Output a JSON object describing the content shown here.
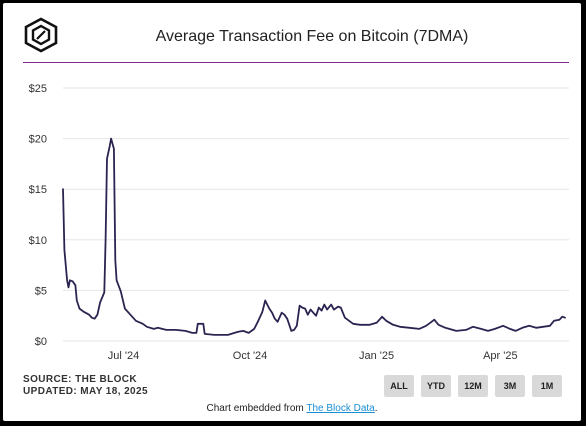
{
  "header": {
    "title": "Average Transaction Fee on Bitcoin (7DMA)"
  },
  "footer": {
    "source_line": "SOURCE: THE BLOCK",
    "updated_line": "UPDATED: MAY 18, 2025",
    "embed_prefix": "Chart embedded from ",
    "embed_link": "The Block Data",
    "embed_suffix": "."
  },
  "range_buttons": [
    "ALL",
    "YTD",
    "12M",
    "3M",
    "1M"
  ],
  "colors": {
    "line": "#2a2550",
    "accent_rule": "#7b2a8a",
    "grid": "#e6e6e6",
    "button_bg": "#d9d9d9",
    "link": "#1a8fd6"
  },
  "chart_data": {
    "type": "line",
    "title": "Average Transaction Fee on Bitcoin (7DMA)",
    "xlabel": "",
    "ylabel": "",
    "grid": true,
    "ylim": [
      0,
      25
    ],
    "xlim": [
      "2024-05-18",
      "2025-05-18"
    ],
    "y_ticks": [
      "$0",
      "$5",
      "$10",
      "$15",
      "$20",
      "$25"
    ],
    "x_ticks": [
      {
        "label": "Jul '24",
        "date": "2024-07-01"
      },
      {
        "label": "Oct '24",
        "date": "2024-10-01"
      },
      {
        "label": "Jan '25",
        "date": "2025-01-01"
      },
      {
        "label": "Apr '25",
        "date": "2025-04-01"
      }
    ],
    "series": [
      {
        "points": [
          [
            "2024-05-18",
            15.0
          ],
          [
            "2024-05-19",
            9.0
          ],
          [
            "2024-05-21",
            6.0
          ],
          [
            "2024-05-22",
            5.3
          ],
          [
            "2024-05-23",
            6.0
          ],
          [
            "2024-05-25",
            5.9
          ],
          [
            "2024-05-27",
            5.5
          ],
          [
            "2024-05-28",
            4.0
          ],
          [
            "2024-05-30",
            3.2
          ],
          [
            "2024-06-02",
            2.9
          ],
          [
            "2024-06-06",
            2.6
          ],
          [
            "2024-06-08",
            2.3
          ],
          [
            "2024-06-10",
            2.2
          ],
          [
            "2024-06-12",
            2.6
          ],
          [
            "2024-06-14",
            3.8
          ],
          [
            "2024-06-17",
            4.8
          ],
          [
            "2024-06-18",
            10.0
          ],
          [
            "2024-06-19",
            18.0
          ],
          [
            "2024-06-21",
            19.3
          ],
          [
            "2024-06-22",
            20.0
          ],
          [
            "2024-06-24",
            19.0
          ],
          [
            "2024-06-25",
            8.0
          ],
          [
            "2024-06-26",
            6.0
          ],
          [
            "2024-06-29",
            4.9
          ],
          [
            "2024-07-02",
            3.2
          ],
          [
            "2024-07-06",
            2.6
          ],
          [
            "2024-07-10",
            2.0
          ],
          [
            "2024-07-15",
            1.7
          ],
          [
            "2024-07-18",
            1.4
          ],
          [
            "2024-07-23",
            1.2
          ],
          [
            "2024-07-26",
            1.3
          ],
          [
            "2024-08-01",
            1.1
          ],
          [
            "2024-08-08",
            1.1
          ],
          [
            "2024-08-15",
            1.0
          ],
          [
            "2024-08-20",
            0.8
          ],
          [
            "2024-08-23",
            0.8
          ],
          [
            "2024-08-24",
            1.7
          ],
          [
            "2024-08-28",
            1.7
          ],
          [
            "2024-08-29",
            0.7
          ],
          [
            "2024-09-05",
            0.6
          ],
          [
            "2024-09-15",
            0.6
          ],
          [
            "2024-09-22",
            0.9
          ],
          [
            "2024-09-26",
            1.0
          ],
          [
            "2024-09-30",
            0.8
          ],
          [
            "2024-10-04",
            1.2
          ],
          [
            "2024-10-07",
            2.0
          ],
          [
            "2024-10-10",
            2.9
          ],
          [
            "2024-10-12",
            4.0
          ],
          [
            "2024-10-15",
            3.2
          ],
          [
            "2024-10-17",
            2.8
          ],
          [
            "2024-10-19",
            2.2
          ],
          [
            "2024-10-21",
            1.9
          ],
          [
            "2024-10-24",
            2.8
          ],
          [
            "2024-10-26",
            2.6
          ],
          [
            "2024-10-28",
            2.2
          ],
          [
            "2024-10-31",
            1.0
          ],
          [
            "2024-11-02",
            1.1
          ],
          [
            "2024-11-04",
            1.5
          ],
          [
            "2024-11-06",
            3.5
          ],
          [
            "2024-11-08",
            3.3
          ],
          [
            "2024-11-10",
            3.2
          ],
          [
            "2024-11-12",
            2.6
          ],
          [
            "2024-11-14",
            3.1
          ],
          [
            "2024-11-16",
            2.8
          ],
          [
            "2024-11-18",
            2.5
          ],
          [
            "2024-11-20",
            3.3
          ],
          [
            "2024-11-22",
            3.0
          ],
          [
            "2024-11-24",
            3.6
          ],
          [
            "2024-11-26",
            3.1
          ],
          [
            "2024-11-29",
            3.6
          ],
          [
            "2024-12-01",
            3.1
          ],
          [
            "2024-12-04",
            3.4
          ],
          [
            "2024-12-06",
            3.3
          ],
          [
            "2024-12-09",
            2.3
          ],
          [
            "2024-12-12",
            2.0
          ],
          [
            "2024-12-15",
            1.7
          ],
          [
            "2024-12-20",
            1.6
          ],
          [
            "2024-12-27",
            1.6
          ],
          [
            "2025-01-01",
            1.8
          ],
          [
            "2025-01-05",
            2.4
          ],
          [
            "2025-01-08",
            2.0
          ],
          [
            "2025-01-13",
            1.6
          ],
          [
            "2025-01-18",
            1.4
          ],
          [
            "2025-01-25",
            1.3
          ],
          [
            "2025-02-01",
            1.2
          ],
          [
            "2025-02-06",
            1.5
          ],
          [
            "2025-02-09",
            1.8
          ],
          [
            "2025-02-12",
            2.1
          ],
          [
            "2025-02-15",
            1.6
          ],
          [
            "2025-02-20",
            1.3
          ],
          [
            "2025-02-28",
            1.0
          ],
          [
            "2025-03-07",
            1.1
          ],
          [
            "2025-03-12",
            1.4
          ],
          [
            "2025-03-18",
            1.2
          ],
          [
            "2025-03-23",
            1.0
          ],
          [
            "2025-03-28",
            1.2
          ],
          [
            "2025-04-03",
            1.5
          ],
          [
            "2025-04-08",
            1.2
          ],
          [
            "2025-04-12",
            1.0
          ],
          [
            "2025-04-17",
            1.3
          ],
          [
            "2025-04-22",
            1.5
          ],
          [
            "2025-04-27",
            1.3
          ],
          [
            "2025-05-02",
            1.4
          ],
          [
            "2025-05-07",
            1.5
          ],
          [
            "2025-05-10",
            2.0
          ],
          [
            "2025-05-14",
            2.1
          ],
          [
            "2025-05-16",
            2.4
          ],
          [
            "2025-05-18",
            2.3
          ]
        ]
      }
    ]
  }
}
